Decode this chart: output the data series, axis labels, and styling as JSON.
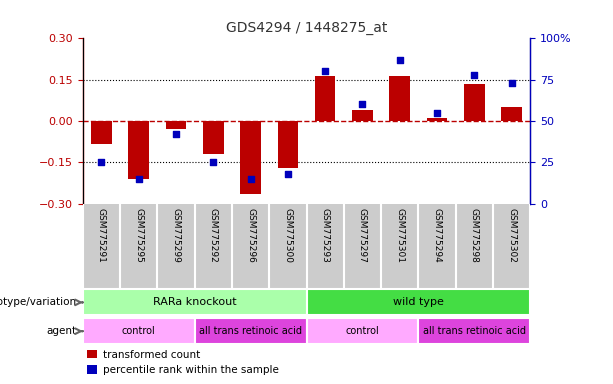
{
  "title": "GDS4294 / 1448275_at",
  "samples": [
    "GSM775291",
    "GSM775295",
    "GSM775299",
    "GSM775292",
    "GSM775296",
    "GSM775300",
    "GSM775293",
    "GSM775297",
    "GSM775301",
    "GSM775294",
    "GSM775298",
    "GSM775302"
  ],
  "bar_values": [
    -0.085,
    -0.21,
    -0.03,
    -0.12,
    -0.265,
    -0.17,
    0.165,
    0.04,
    0.165,
    0.01,
    0.135,
    0.05
  ],
  "dot_values": [
    25,
    15,
    42,
    25,
    15,
    18,
    80,
    60,
    87,
    55,
    78,
    73
  ],
  "ylim_left": [
    -0.3,
    0.3
  ],
  "ylim_right": [
    0,
    100
  ],
  "yticks_left": [
    -0.3,
    -0.15,
    0,
    0.15,
    0.3
  ],
  "yticks_right": [
    0,
    25,
    50,
    75,
    100
  ],
  "bar_color": "#BB0000",
  "dot_color": "#0000BB",
  "zero_line_color": "#BB0000",
  "dotted_line_color": "#000000",
  "dotted_lines": [
    -0.15,
    0.15
  ],
  "genotype_groups": [
    {
      "label": "RARa knockout",
      "start": 0,
      "end": 6,
      "color": "#AAFFAA"
    },
    {
      "label": "wild type",
      "start": 6,
      "end": 12,
      "color": "#44DD44"
    }
  ],
  "agent_groups": [
    {
      "label": "control",
      "start": 0,
      "end": 3,
      "color": "#FFAAFF"
    },
    {
      "label": "all trans retinoic acid",
      "start": 3,
      "end": 6,
      "color": "#DD44DD"
    },
    {
      "label": "control",
      "start": 6,
      "end": 9,
      "color": "#FFAAFF"
    },
    {
      "label": "all trans retinoic acid",
      "start": 9,
      "end": 12,
      "color": "#DD44DD"
    }
  ],
  "genotype_label": "genotype/variation",
  "agent_label": "agent",
  "legend_bar_label": "transformed count",
  "legend_dot_label": "percentile rank within the sample",
  "title_color": "#333333",
  "sample_bg_color": "#CCCCCC",
  "sample_divider_color": "#FFFFFF"
}
